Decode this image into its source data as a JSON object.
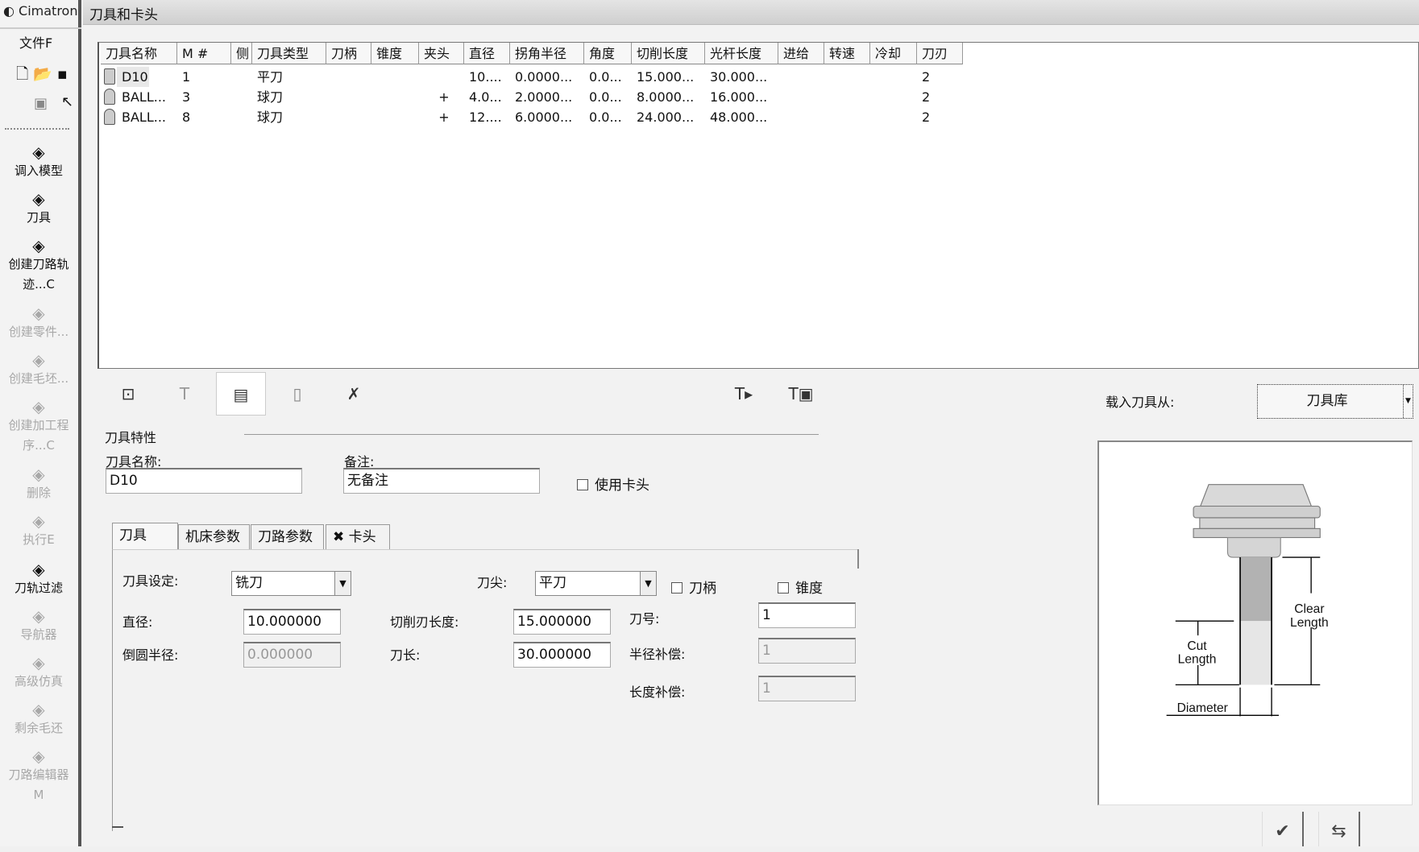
{
  "app": {
    "title": "Cimatron",
    "menu_file": "文件F",
    "toolbar_icons": [
      "new-file-icon",
      "open-folder-icon",
      "save-icon",
      "select-icon",
      "pointer-icon"
    ]
  },
  "sidebar": {
    "items": [
      {
        "label": "调入模型",
        "icon": "load-model-icon",
        "enabled": true
      },
      {
        "label": "刀具",
        "icon": "tool-icon",
        "enabled": true
      },
      {
        "label": "创建刀路轨\n迹...C",
        "icon": "create-toolpath-icon",
        "enabled": true
      },
      {
        "label": "创建零件...",
        "icon": "create-part-icon",
        "enabled": false
      },
      {
        "label": "创建毛坯...",
        "icon": "create-stock-icon",
        "enabled": false
      },
      {
        "label": "创建加工程\n序...C",
        "icon": "create-procedure-icon",
        "enabled": false
      },
      {
        "label": "删除",
        "icon": "delete-icon",
        "enabled": false
      },
      {
        "label": "执行E",
        "icon": "execute-icon",
        "enabled": false
      },
      {
        "label": "刀轨过滤",
        "icon": "toolpath-filter-icon",
        "enabled": true
      },
      {
        "label": "导航器",
        "icon": "navigator-icon",
        "enabled": false
      },
      {
        "label": "高级仿真",
        "icon": "simulation-icon",
        "enabled": false
      },
      {
        "label": "剩余毛还",
        "icon": "remaining-stock-icon",
        "enabled": false
      },
      {
        "label": "刀路编辑器\nM",
        "icon": "toolpath-editor-icon",
        "enabled": false
      }
    ]
  },
  "dialog": {
    "title": "刀具和卡头"
  },
  "table": {
    "columns": [
      "刀具名称",
      "M #",
      "侧",
      "刀具类型",
      "刀柄",
      "锥度",
      "夹头",
      "直径",
      "拐角半径",
      "角度",
      "切削长度",
      "光杆长度",
      "进给",
      "转速",
      "冷却",
      "刀刃"
    ],
    "rows": [
      [
        "D10",
        "1",
        "",
        "平刀",
        "",
        "",
        "",
        "10....",
        "0.0000...",
        "0.0...",
        "15.000...",
        "30.000...",
        "",
        "",
        "",
        "2"
      ],
      [
        "BALL...",
        "3",
        "",
        "球刀",
        "",
        "",
        "+",
        "4.0...",
        "2.0000...",
        "0.0...",
        "8.0000...",
        "16.000...",
        "",
        "",
        "",
        "2"
      ],
      [
        "BALL...",
        "8",
        "",
        "球刀",
        "",
        "",
        "+",
        "12....",
        "6.0000...",
        "0.0...",
        "24.000...",
        "48.000...",
        "",
        "",
        "",
        "2"
      ]
    ],
    "row_icons": [
      "flat-mill-icon",
      "ball-mill-icon",
      "ball-mill-icon"
    ]
  },
  "toolbar": {
    "icons": [
      "import-icon",
      "tool-holder-icon",
      "edit-tool-icon",
      "cylinder-icon",
      "delete-tool-icon",
      "tool-export-icon",
      "tool-library-export-icon"
    ]
  },
  "props": {
    "section": "刀具特性",
    "name_label": "刀具名称:",
    "name_value": "D10",
    "note_label": "备注:",
    "note_value": "无备注",
    "use_holder": "使用卡头",
    "use_holder_checked": false
  },
  "tabs": [
    {
      "label": "刀具",
      "active": true
    },
    {
      "label": "机床参数"
    },
    {
      "label": "刀路参数"
    },
    {
      "label": "卡头"
    }
  ],
  "tool_tab": {
    "setting_label": "刀具设定:",
    "setting_value": "铣刀",
    "tip_label": "刀尖:",
    "tip_value": "平刀",
    "shank_label": "刀柄",
    "shank_checked": false,
    "taper_label": "锥度",
    "taper_checked": false,
    "diameter_label": "直径:",
    "diameter_value": "10.000000",
    "corner_label": "倒圆半径:",
    "corner_value": "0.000000",
    "cut_len_label": "切削刃长度:",
    "cut_len_value": "15.000000",
    "length_label": "刀长:",
    "length_value": "30.000000",
    "number_label": "刀号:",
    "number_value": "1",
    "radius_comp_label": "半径补偿:",
    "radius_comp_value": "1",
    "length_comp_label": "长度补偿:",
    "length_comp_value": "1"
  },
  "load": {
    "label": "载入刀具从:",
    "value": "刀具库"
  },
  "diagram": {
    "clear1": "Clear",
    "clear2": "Length",
    "cut1": "Cut",
    "cut2": "Length",
    "diameter": "Diameter"
  },
  "buttons": {
    "ok_icon": "checkmark-icon",
    "apply_icon": "apply-icon"
  }
}
